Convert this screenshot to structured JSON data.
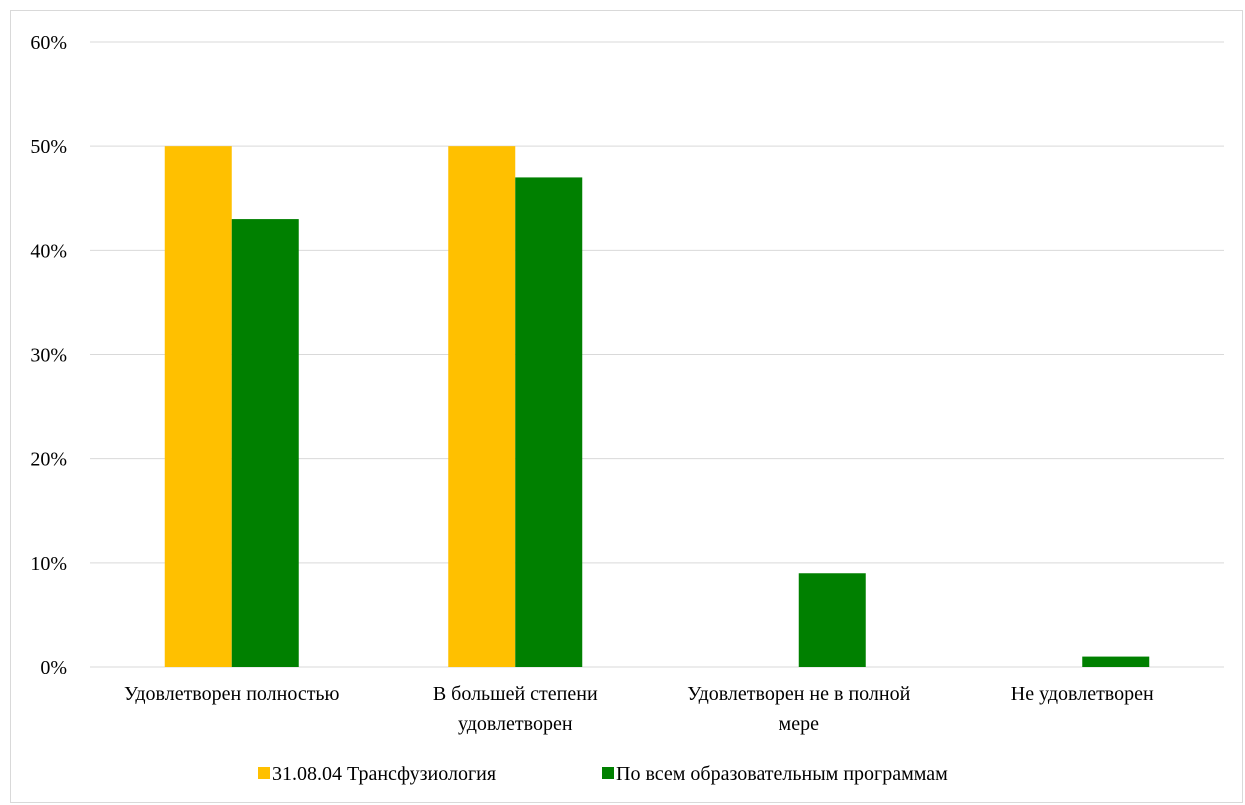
{
  "chart_data": {
    "type": "bar",
    "categories": [
      [
        "Удовлетворен полностью"
      ],
      [
        "В большей степени",
        "удовлетворен"
      ],
      [
        "Удовлетворен не в полной",
        "мере"
      ],
      [
        "Не удовлетворен"
      ]
    ],
    "series": [
      {
        "name": "31.08.04 Трансфузиология",
        "color": "#ffc000",
        "values": [
          50,
          50,
          0,
          0
        ]
      },
      {
        "name": "По всем образовательным программам",
        "color": "#008000",
        "values": [
          43,
          47,
          9,
          1
        ]
      }
    ],
    "y_ticks": [
      "0%",
      "10%",
      "20%",
      "30%",
      "40%",
      "50%",
      "60%"
    ],
    "ylim": [
      0,
      60
    ],
    "grid": true,
    "legend_position": "bottom",
    "title": "",
    "xlabel": "",
    "ylabel": ""
  }
}
